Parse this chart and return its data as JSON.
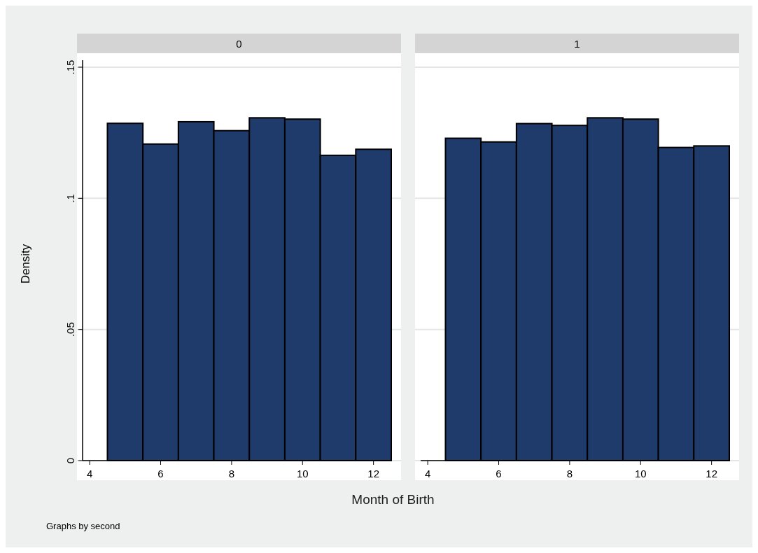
{
  "chart_data": [
    {
      "type": "histogram",
      "title": "0",
      "xlabel": "Month of Birth",
      "ylabel": "Density",
      "annotations": [
        "Graphs by second"
      ],
      "bins": [
        4.5,
        5.5,
        6.5,
        7.5,
        8.5,
        9.5,
        10.5,
        11.5,
        12.5
      ],
      "values": [
        0.1286,
        0.1207,
        0.1292,
        0.1258,
        0.1307,
        0.1302,
        0.1164,
        0.1187
      ],
      "color": "#1f3b6b",
      "xlim": [
        3.8,
        12.5
      ],
      "xticks": [
        4,
        6,
        8,
        10,
        12
      ],
      "ylim": [
        0,
        0.15
      ],
      "yticks": [
        0,
        {
          "value": 0.05,
          "label": ".05"
        },
        {
          "value": 0.1,
          "label": ".1"
        },
        {
          "value": 0.15,
          "label": ".15"
        }
      ],
      "grid": "y"
    },
    {
      "type": "histogram",
      "title": "1",
      "bins": [
        4.5,
        5.5,
        6.5,
        7.5,
        8.5,
        9.5,
        10.5,
        11.5,
        12.5
      ],
      "values": [
        0.1229,
        0.1215,
        0.1285,
        0.1278,
        0.1307,
        0.1302,
        0.1194,
        0.12
      ],
      "color": "#1f3b6b",
      "xlim": [
        3.8,
        12.5
      ],
      "xticks": [
        4,
        6,
        8,
        10,
        12
      ],
      "ylim": [
        0,
        0.15
      ],
      "yticks": [
        0,
        0.05,
        0.1,
        0.15
      ],
      "grid": "y",
      "tick_labels": "x"
    }
  ]
}
